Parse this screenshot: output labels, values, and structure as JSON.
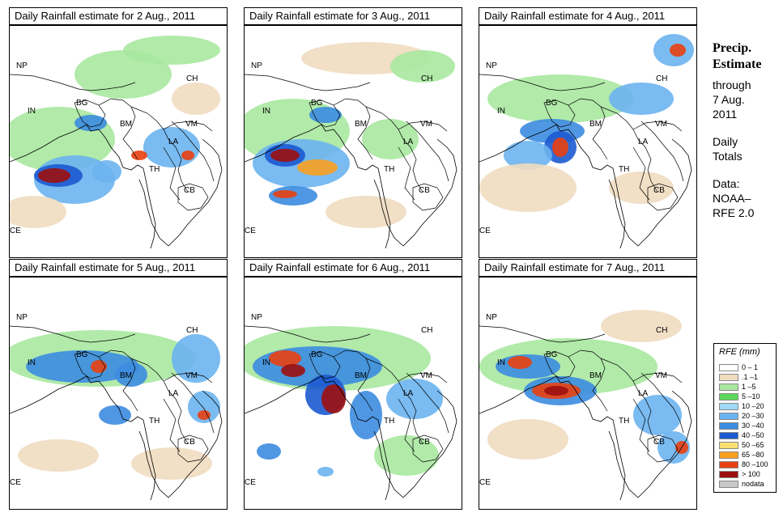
{
  "panels": [
    {
      "title": "Daily Rainfall estimate for  2 Aug., 2011"
    },
    {
      "title": "Daily Rainfall estimate for  3 Aug., 2011"
    },
    {
      "title": "Daily Rainfall estimate for  4 Aug., 2011"
    },
    {
      "title": "Daily Rainfall estimate for  5 Aug., 2011"
    },
    {
      "title": "Daily Rainfall estimate for  6 Aug., 2011"
    },
    {
      "title": "Daily Rainfall estimate for  7 Aug., 2011"
    }
  ],
  "labels": {
    "np": "NP",
    "ch": "CH",
    "in": "IN",
    "bg": "BG",
    "bm": "BM",
    "vm": "VM",
    "la": "LA",
    "th": "TH",
    "cb": "CB",
    "ce": "CE"
  },
  "side": {
    "title1": "Precip.",
    "title2": "Estimate",
    "line1": "through",
    "line2": "7 Aug.",
    "line3": "2011",
    "daily1": "Daily",
    "daily2": "Totals",
    "data1": "Data:",
    "data2": "NOAA–",
    "data3": "RFE 2.0"
  },
  "legend": {
    "title": "RFE (mm)",
    "items": [
      {
        "label": "0 – 1",
        "color": "#ffffff"
      },
      {
        "label": ".1 –1",
        "color": "#f0dcc0"
      },
      {
        "label": "1 –5",
        "color": "#a8e8a0"
      },
      {
        "label": "5 –10",
        "color": "#5cd85c"
      },
      {
        "label": "10 –20",
        "color": "#a0d8f8"
      },
      {
        "label": "20 –30",
        "color": "#6cb4f0"
      },
      {
        "label": "30 –40",
        "color": "#3c8ce0"
      },
      {
        "label": "40 –50",
        "color": "#1c5ad0"
      },
      {
        "label": "50 –65",
        "color": "#f8e070"
      },
      {
        "label": "65 –80",
        "color": "#f8a020"
      },
      {
        "label": "80 –100",
        "color": "#e84010"
      },
      {
        "label": "> 100",
        "color": "#9c1010"
      },
      {
        "label": "nodata",
        "color": "#c8c8c8"
      }
    ]
  }
}
